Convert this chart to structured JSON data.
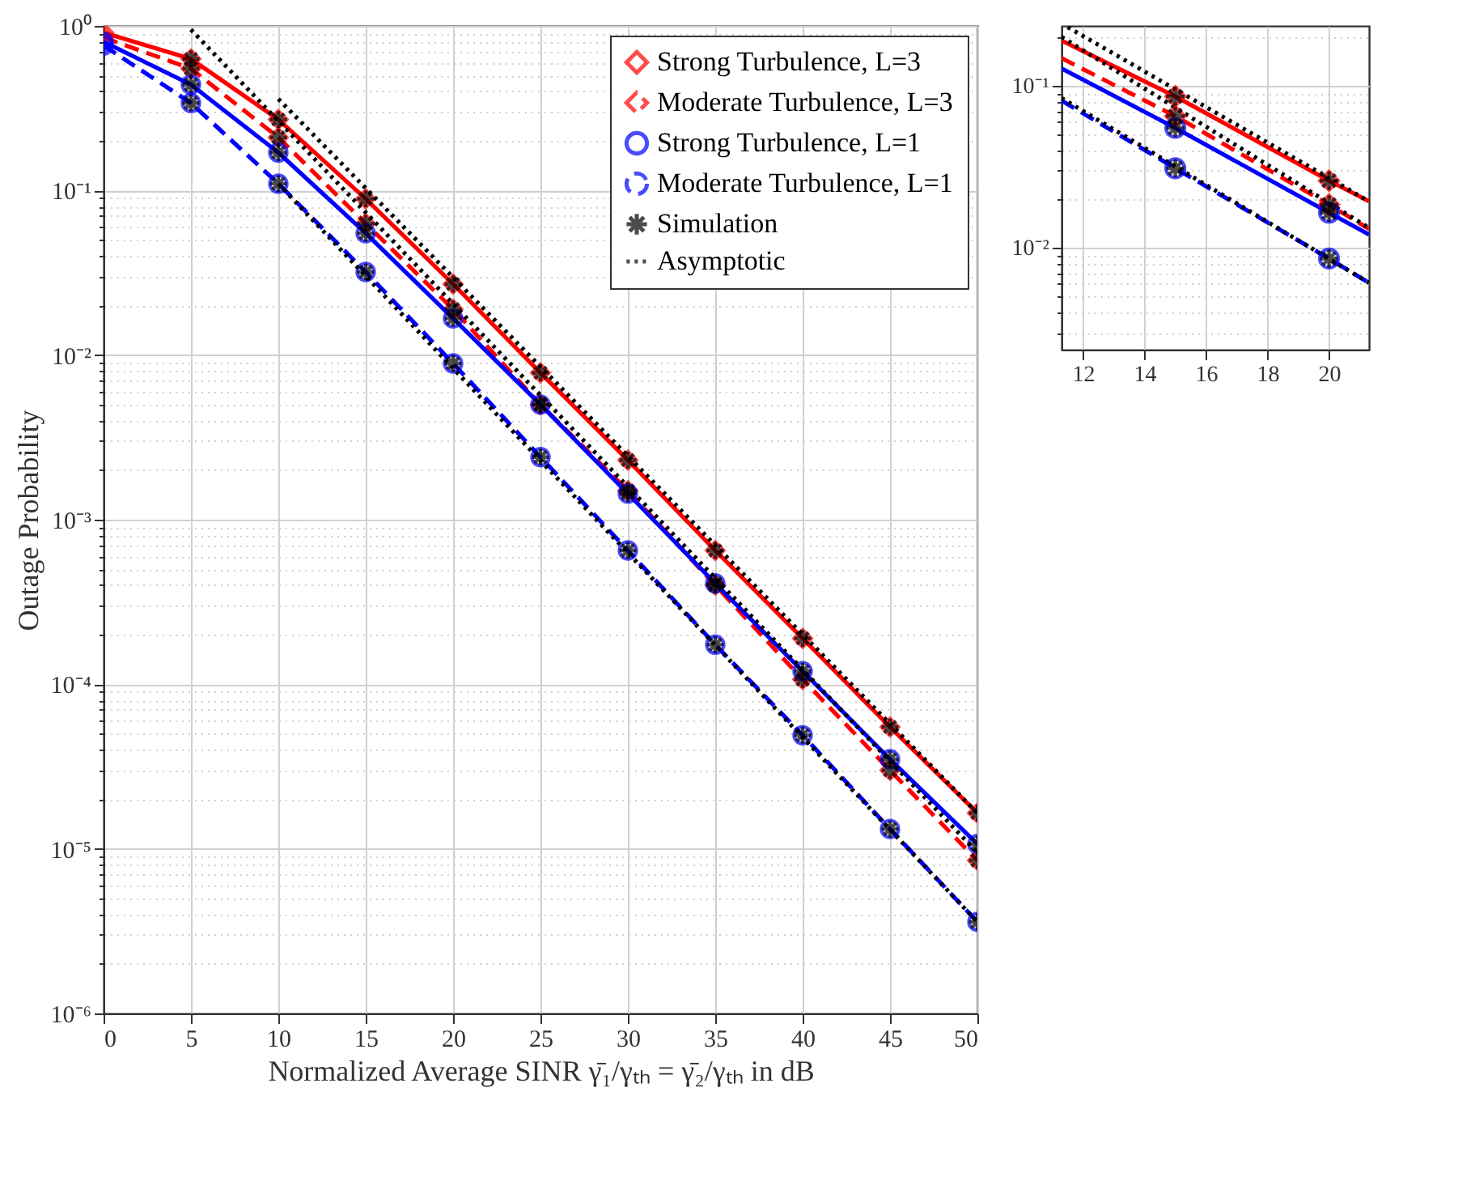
{
  "chart_data": [
    {
      "type": "line",
      "xlabel": "Normalized Average SINR γ̄₁/γₜₕ = γ̄₂/γₜₕ in dB",
      "ylabel": "Outage Probability",
      "log": "y",
      "grid": true,
      "legend": "top right",
      "x": [
        0,
        5,
        10,
        15,
        20,
        25,
        30,
        35,
        40,
        45,
        50
      ],
      "xlim": [
        0,
        50
      ],
      "xticks": [
        0,
        5,
        10,
        15,
        20,
        25,
        30,
        35,
        40,
        45,
        50
      ],
      "ylim": [
        1e-06,
        1
      ],
      "yticks": [
        {
          "value": 1e-06,
          "label": "10⁻⁶"
        },
        {
          "value": 2e-06,
          "label": null
        },
        {
          "value": 3e-06,
          "label": null
        },
        {
          "value": 4e-06,
          "label": null
        },
        {
          "value": 5e-06,
          "label": null
        },
        {
          "value": 6e-06,
          "label": null
        },
        {
          "value": 7e-06,
          "label": null
        },
        {
          "value": 8e-06,
          "label": null
        },
        {
          "value": 9e-06,
          "label": null
        },
        {
          "value": 1e-05,
          "label": "10⁻⁵"
        },
        {
          "value": 2e-05,
          "label": null
        },
        {
          "value": 3e-05,
          "label": null
        },
        {
          "value": 4e-05,
          "label": null
        },
        {
          "value": 5e-05,
          "label": null
        },
        {
          "value": 6e-05,
          "label": null
        },
        {
          "value": 7e-05,
          "label": null
        },
        {
          "value": 8e-05,
          "label": null
        },
        {
          "value": 9e-05,
          "label": null
        },
        {
          "value": 0.0001,
          "label": "10⁻⁴"
        },
        {
          "value": 0.0002,
          "label": null
        },
        {
          "value": 0.0003,
          "label": null
        },
        {
          "value": 0.0004,
          "label": null
        },
        {
          "value": 0.0005,
          "label": null
        },
        {
          "value": 0.0006,
          "label": null
        },
        {
          "value": 0.0007,
          "label": null
        },
        {
          "value": 0.0008,
          "label": null
        },
        {
          "value": 0.0009,
          "label": null
        },
        {
          "value": 0.001,
          "label": "10⁻³"
        },
        {
          "value": 0.002,
          "label": null
        },
        {
          "value": 0.003,
          "label": null
        },
        {
          "value": 0.004,
          "label": null
        },
        {
          "value": 0.005,
          "label": null
        },
        {
          "value": 0.006,
          "label": null
        },
        {
          "value": 0.007,
          "label": null
        },
        {
          "value": 0.008,
          "label": null
        },
        {
          "value": 0.009,
          "label": null
        },
        {
          "value": 0.01,
          "label": "10⁻²"
        },
        {
          "value": 0.02,
          "label": null
        },
        {
          "value": 0.03,
          "label": null
        },
        {
          "value": 0.04,
          "label": null
        },
        {
          "value": 0.05,
          "label": null
        },
        {
          "value": 0.06,
          "label": null
        },
        {
          "value": 0.07,
          "label": null
        },
        {
          "value": 0.08,
          "label": null
        },
        {
          "value": 0.09,
          "label": null
        },
        {
          "value": 0.1,
          "label": "10⁻¹"
        },
        {
          "value": 0.2,
          "label": null
        },
        {
          "value": 0.3,
          "label": null
        },
        {
          "value": 0.4,
          "label": null
        },
        {
          "value": 0.5,
          "label": null
        },
        {
          "value": 0.6,
          "label": null
        },
        {
          "value": 0.7,
          "label": null
        },
        {
          "value": 0.8,
          "label": null
        },
        {
          "value": 0.9,
          "label": null
        },
        {
          "value": 1,
          "label": "10⁰"
        }
      ],
      "series": [
        {
          "name": "Strong Turbulence, L=3",
          "color": "#ff0000",
          "marker": "diamond",
          "line_style": "solid",
          "values": [
            0.91,
            0.63,
            0.27,
            0.089,
            0.027,
            0.0078,
            0.0023,
            0.00065,
            0.00019,
            5.5e-05,
            1.65e-05
          ]
        },
        {
          "name": "Moderate Turbulence, L=3",
          "color": "#ff0000",
          "marker": "diamond",
          "line_style": "dashed",
          "values": [
            0.85,
            0.55,
            0.21,
            0.063,
            0.019,
            0.005,
            0.0015,
            0.0004,
            0.000107,
            3e-05,
            8.5e-06
          ]
        },
        {
          "name": "Strong Turbulence, L=1",
          "color": "#0000ff",
          "marker": "circle",
          "line_style": "solid",
          "values": [
            0.8,
            0.44,
            0.17,
            0.055,
            0.0167,
            0.005,
            0.00144,
            0.00041,
            0.00012,
            3.5e-05,
            1.07e-05
          ]
        },
        {
          "name": "Moderate Turbulence, L=1",
          "color": "#0000ff",
          "marker": "circle",
          "line_style": "dashed",
          "values": [
            0.76,
            0.34,
            0.11,
            0.032,
            0.0089,
            0.0024,
            0.00065,
            0.000174,
            4.9e-05,
            1.32e-05,
            3.6e-06
          ]
        },
        {
          "name": "Simulation",
          "type": "scatter",
          "color": "#000000",
          "marker": "cross",
          "x": [
            5,
            10,
            15,
            20,
            25,
            30,
            35,
            40,
            45,
            50,
            5,
            10,
            15,
            20,
            25,
            30,
            35,
            40,
            45,
            50,
            5,
            10,
            15,
            20,
            25,
            30,
            35,
            40,
            45,
            50,
            5,
            10,
            15,
            20,
            25,
            30,
            35,
            40,
            45,
            50
          ],
          "values": [
            0.63,
            0.27,
            0.089,
            0.027,
            0.0078,
            0.0023,
            0.00065,
            0.00019,
            5.5e-05,
            1.65e-05,
            0.55,
            0.21,
            0.063,
            0.019,
            0.005,
            0.0015,
            0.0004,
            0.000107,
            3e-05,
            8.5e-06,
            0.44,
            0.17,
            0.055,
            0.0167,
            0.005,
            0.00144,
            0.00041,
            0.00012,
            3.5e-05,
            1.07e-05,
            0.34,
            0.11,
            0.032,
            0.0089,
            0.0024,
            0.00065,
            0.000174,
            4.9e-05,
            1.32e-05,
            3.6e-06
          ]
        },
        {
          "name": "Asymptotic",
          "color": "#000000",
          "marker": "none",
          "line_style": "dotted",
          "x": [
            10,
            50
          ],
          "values": [
            0.36,
            1.65e-05
          ]
        },
        {
          "color": "#000000",
          "marker": "none",
          "line_style": "dotted",
          "x": [
            5,
            50
          ],
          "values": [
            0.95,
            9.5e-06
          ]
        },
        {
          "color": "#000000",
          "marker": "none",
          "line_style": "dotted",
          "x": [
            10,
            50
          ],
          "values": [
            0.11,
            3.6e-06
          ]
        }
      ]
    },
    {
      "type": "line",
      "log": "y",
      "grid": true,
      "xlim": [
        11.3,
        21.3
      ],
      "xticks": [
        12,
        14,
        16,
        18,
        20
      ],
      "ylim": [
        0.00236,
        0.234
      ],
      "yticks": [
        {
          "value": 0.003,
          "label": null
        },
        {
          "value": 0.004,
          "label": null
        },
        {
          "value": 0.005,
          "label": null
        },
        {
          "value": 0.006,
          "label": null
        },
        {
          "value": 0.007,
          "label": null
        },
        {
          "value": 0.008,
          "label": null
        },
        {
          "value": 0.009,
          "label": null
        },
        {
          "value": 0.01,
          "label": "10⁻²"
        },
        {
          "value": 0.02,
          "label": null
        },
        {
          "value": 0.03,
          "label": null
        },
        {
          "value": 0.04,
          "label": null
        },
        {
          "value": 0.05,
          "label": null
        },
        {
          "value": 0.06,
          "label": null
        },
        {
          "value": 0.07,
          "label": null
        },
        {
          "value": 0.08,
          "label": null
        },
        {
          "value": 0.09,
          "label": null
        },
        {
          "value": 0.1,
          "label": "10⁻¹"
        },
        {
          "value": 0.2,
          "label": null
        }
      ],
      "x": [
        11.3,
        15,
        20,
        21.3
      ],
      "series": [
        {
          "color": "#ff0000",
          "line_style": "solid",
          "values": [
            0.19,
            0.086,
            0.026,
            0.0194
          ]
        },
        {
          "color": "#ff0000",
          "line_style": "dashed",
          "values": [
            0.148,
            0.065,
            0.0185,
            0.0131
          ]
        },
        {
          "color": "#0000ff",
          "line_style": "solid",
          "values": [
            0.128,
            0.055,
            0.0165,
            0.0121
          ]
        },
        {
          "color": "#0000ff",
          "line_style": "dashed",
          "values": [
            0.081,
            0.031,
            0.0086,
            0.0061
          ]
        },
        {
          "color": "#000000",
          "line_style": "dotted",
          "x": [
            11.5,
            21.3
          ],
          "values": [
            0.23,
            0.0194
          ]
        },
        {
          "color": "#000000",
          "line_style": "dotted",
          "x": [
            11.3,
            21.3
          ],
          "values": [
            0.2,
            0.0133
          ]
        },
        {
          "color": "#000000",
          "line_style": "dotted",
          "x": [
            11.3,
            21.3
          ],
          "values": [
            0.084,
            0.0061
          ]
        },
        {
          "type": "scatter",
          "color": "#ff0000",
          "marker": "diamond",
          "x": [
            15,
            20
          ],
          "values": [
            0.086,
            0.026
          ]
        },
        {
          "type": "scatter",
          "color": "#ff0000",
          "marker": "diamond",
          "x": [
            15,
            20
          ],
          "values": [
            0.065,
            0.0185
          ]
        },
        {
          "type": "scatter",
          "color": "#0000ff",
          "marker": "circle",
          "x": [
            15,
            20
          ],
          "values": [
            0.055,
            0.0165
          ]
        },
        {
          "type": "scatter",
          "color": "#0000ff",
          "marker": "circle",
          "x": [
            15,
            20
          ],
          "values": [
            0.031,
            0.0086
          ]
        },
        {
          "type": "scatter",
          "color": "#000000",
          "marker": "cross",
          "x": [
            15,
            20,
            15,
            20,
            15,
            20,
            15,
            20
          ],
          "values": [
            0.086,
            0.026,
            0.065,
            0.0185,
            0.055,
            0.0165,
            0.031,
            0.0086
          ]
        }
      ]
    }
  ]
}
